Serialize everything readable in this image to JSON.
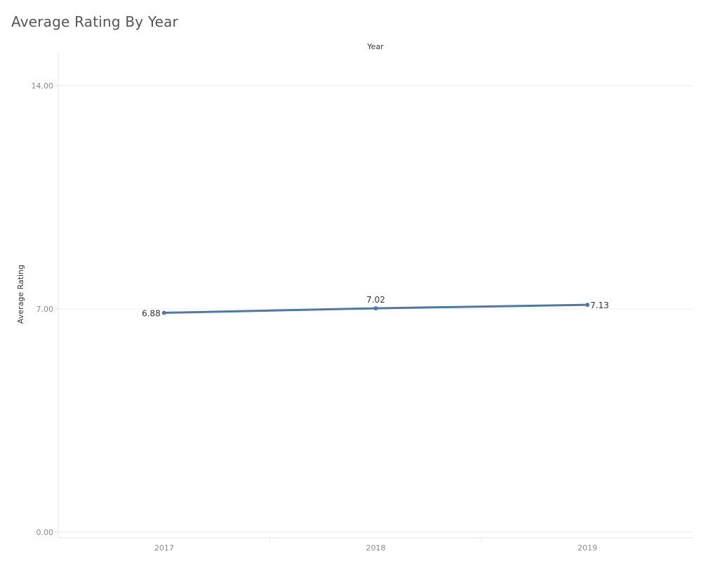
{
  "chart_data": {
    "type": "line",
    "title": "Average Rating By Year",
    "x_header": "Year",
    "ylabel": "Average Rating",
    "categories": [
      "2017",
      "2018",
      "2019"
    ],
    "values": [
      6.88,
      7.02,
      7.13
    ],
    "value_labels": [
      "6.88",
      "7.02",
      "7.13"
    ],
    "ylim": [
      0,
      14
    ],
    "y_ticks": [
      {
        "value": 14,
        "label": "14.00"
      },
      {
        "value": 7,
        "label": "7.00"
      },
      {
        "value": 0,
        "label": "0.00"
      }
    ],
    "grid": true,
    "line_color": "#4e79a7"
  }
}
